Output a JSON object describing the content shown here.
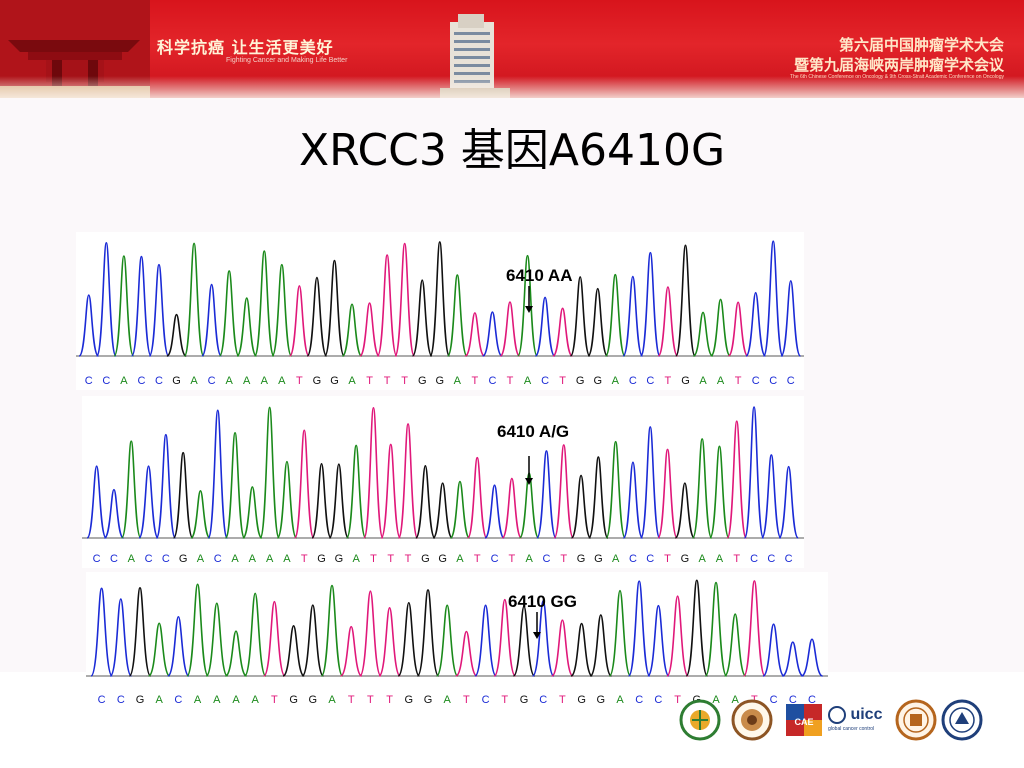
{
  "banner": {
    "slogan_cn": "科学抗癌  让生活更美好",
    "slogan_en": "Fighting Cancer and Making Life Better",
    "conference_line1": "第六届中国肿瘤学术大会",
    "conference_line2": "暨第九届海峡两岸肿瘤学术会议",
    "conference_en": "The 6th Chinese Conference on Oncology & 9th Cross-Strait Academic Conference on Oncology"
  },
  "title": "XRCC3 基因A6410G",
  "chromatograms": [
    {
      "label": "6410 AA",
      "sequence": "CCACCGACAAAATGGATTTGGATCTACTGGACCTGAATCCC"
    },
    {
      "label": "6410 A/G",
      "sequence": "CCACCGACAAAATGGATTTGGATCTACTGGACCTGAATCCC"
    },
    {
      "label": "6410 GG",
      "sequence": "CCGACAAAATGGATTTGGATCTGCTGGACCTGAATCCC"
    }
  ],
  "logos": [
    {
      "name": "association-emblem",
      "color": "#2e7d32"
    },
    {
      "name": "anniversary-emblem",
      "color": "#8d5524"
    },
    {
      "name": "cae-logo",
      "color": "#c62828"
    },
    {
      "name": "uicc-logo",
      "text": "uicc",
      "subtext": "global cancer control",
      "color": "#1f3f7a"
    },
    {
      "name": "university-seal",
      "color": "#b5651d"
    },
    {
      "name": "academy-seal",
      "color": "#1f3f7a"
    }
  ],
  "colors": {
    "A": "#1b8a1b",
    "C": "#1b2bd6",
    "G": "#111111",
    "T": "#e0187a"
  }
}
